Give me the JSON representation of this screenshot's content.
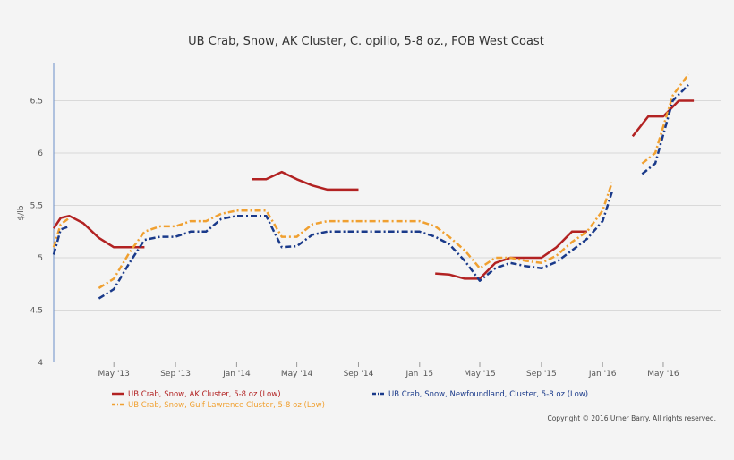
{
  "chart_data": {
    "type": "line",
    "title": "UB Crab, Snow, AK Cluster, C. opilio, 5-8 oz., FOB West Coast",
    "ylabel": "$/lb",
    "xlabel": "",
    "ylim": [
      4,
      6.75
    ],
    "y_ticks": [
      "4",
      "4.5",
      "5",
      "5.5",
      "6",
      "6.5"
    ],
    "x_ticks": [
      {
        "label": "May '13",
        "x": "2013-05"
      },
      {
        "label": "Sep '13",
        "x": "2013-09"
      },
      {
        "label": "Jan '14",
        "x": "2014-01"
      },
      {
        "label": "May '14",
        "x": "2014-05"
      },
      {
        "label": "Sep '14",
        "x": "2014-09"
      },
      {
        "label": "Jan '15",
        "x": "2015-01"
      },
      {
        "label": "May '15",
        "x": "2015-05"
      },
      {
        "label": "Sep '15",
        "x": "2015-09"
      },
      {
        "label": "Jan '16",
        "x": "2016-01"
      },
      {
        "label": "May '16",
        "x": "2016-05"
      }
    ],
    "grid": "horizontal",
    "legend_position": "bottom",
    "series": [
      {
        "name": "UB Crab, Snow, AK Cluster, 5-8 oz (Low)",
        "color": "#b22222",
        "style": "solid",
        "segments": [
          [
            [
              "2013-01-01",
              5.28
            ],
            [
              "2013-01-15",
              5.38
            ],
            [
              "2013-02-01",
              5.4
            ],
            [
              "2013-03-01",
              5.33
            ],
            [
              "2013-04-01",
              5.19
            ],
            [
              "2013-05-01",
              5.1
            ],
            [
              "2013-06-01",
              5.1
            ],
            [
              "2013-07-01",
              5.1
            ]
          ],
          [
            [
              "2014-02-01",
              5.75
            ],
            [
              "2014-03-01",
              5.75
            ],
            [
              "2014-04-01",
              5.82
            ],
            [
              "2014-05-01",
              5.75
            ],
            [
              "2014-06-01",
              5.69
            ],
            [
              "2014-07-01",
              5.65
            ],
            [
              "2014-08-01",
              5.65
            ],
            [
              "2014-09-01",
              5.65
            ]
          ],
          [
            [
              "2015-02-01",
              4.85
            ],
            [
              "2015-03-01",
              4.84
            ],
            [
              "2015-04-01",
              4.8
            ],
            [
              "2015-05-01",
              4.8
            ],
            [
              "2015-06-01",
              4.95
            ],
            [
              "2015-07-01",
              5.0
            ],
            [
              "2015-08-01",
              5.0
            ],
            [
              "2015-09-01",
              5.0
            ],
            [
              "2015-10-01",
              5.1
            ],
            [
              "2015-11-01",
              5.25
            ],
            [
              "2015-12-01",
              5.25
            ]
          ],
          [
            [
              "2016-03-01",
              6.16
            ],
            [
              "2016-04-01",
              6.35
            ],
            [
              "2016-05-01",
              6.35
            ],
            [
              "2016-06-01",
              6.5
            ],
            [
              "2016-07-01",
              6.5
            ]
          ]
        ]
      },
      {
        "name": "UB Crab, Snow, Gulf Lawrence Cluster, 5-8 oz (Low)",
        "color": "#f0a030",
        "style": "dashdot",
        "segments": [
          [
            [
              "2013-01-01",
              5.1
            ],
            [
              "2013-01-15",
              5.32
            ],
            [
              "2013-02-01",
              5.38
            ]
          ],
          [
            [
              "2013-04-01",
              4.71
            ],
            [
              "2013-05-01",
              4.8
            ],
            [
              "2013-06-01",
              5.05
            ],
            [
              "2013-07-01",
              5.25
            ],
            [
              "2013-08-01",
              5.3
            ],
            [
              "2013-09-01",
              5.3
            ],
            [
              "2013-10-01",
              5.35
            ],
            [
              "2013-11-01",
              5.35
            ],
            [
              "2013-12-01",
              5.42
            ],
            [
              "2014-01-01",
              5.45
            ],
            [
              "2014-02-01",
              5.45
            ],
            [
              "2014-03-01",
              5.45
            ],
            [
              "2014-04-01",
              5.2
            ],
            [
              "2014-05-01",
              5.2
            ],
            [
              "2014-06-01",
              5.32
            ],
            [
              "2014-07-01",
              5.35
            ],
            [
              "2014-08-01",
              5.35
            ],
            [
              "2014-09-01",
              5.35
            ],
            [
              "2014-10-01",
              5.35
            ],
            [
              "2014-11-01",
              5.35
            ],
            [
              "2014-12-01",
              5.35
            ],
            [
              "2015-01-01",
              5.35
            ],
            [
              "2015-02-01",
              5.3
            ],
            [
              "2015-03-01",
              5.2
            ],
            [
              "2015-04-01",
              5.07
            ],
            [
              "2015-05-01",
              4.9
            ],
            [
              "2015-06-01",
              5.0
            ],
            [
              "2015-07-01",
              5.0
            ],
            [
              "2015-08-01",
              4.97
            ],
            [
              "2015-09-01",
              4.95
            ],
            [
              "2015-10-01",
              5.02
            ],
            [
              "2015-11-01",
              5.15
            ],
            [
              "2015-12-01",
              5.25
            ],
            [
              "2016-01-01",
              5.45
            ],
            [
              "2016-01-20",
              5.72
            ]
          ],
          [
            [
              "2016-03-20",
              5.9
            ],
            [
              "2016-04-15",
              6.0
            ],
            [
              "2016-05-20",
              6.55
            ],
            [
              "2016-06-20",
              6.75
            ]
          ]
        ]
      },
      {
        "name": "UB Crab, Snow, Newfoundland, Cluster, 5-8 oz (Low)",
        "color": "#1a3a8a",
        "style": "dashdot",
        "segments": [
          [
            [
              "2013-01-01",
              5.03
            ],
            [
              "2013-01-15",
              5.27
            ],
            [
              "2013-02-01",
              5.3
            ]
          ],
          [
            [
              "2013-04-01",
              4.61
            ],
            [
              "2013-05-01",
              4.7
            ],
            [
              "2013-06-01",
              4.95
            ],
            [
              "2013-07-01",
              5.17
            ],
            [
              "2013-08-01",
              5.2
            ],
            [
              "2013-09-01",
              5.2
            ],
            [
              "2013-10-01",
              5.25
            ],
            [
              "2013-11-01",
              5.25
            ],
            [
              "2013-12-01",
              5.37
            ],
            [
              "2014-01-01",
              5.4
            ],
            [
              "2014-02-01",
              5.4
            ],
            [
              "2014-03-01",
              5.4
            ],
            [
              "2014-04-01",
              5.1
            ],
            [
              "2014-05-01",
              5.11
            ],
            [
              "2014-06-01",
              5.22
            ],
            [
              "2014-07-01",
              5.25
            ],
            [
              "2014-08-01",
              5.25
            ],
            [
              "2014-09-01",
              5.25
            ],
            [
              "2014-10-01",
              5.25
            ],
            [
              "2014-11-01",
              5.25
            ],
            [
              "2014-12-01",
              5.25
            ],
            [
              "2015-01-01",
              5.25
            ],
            [
              "2015-02-01",
              5.2
            ],
            [
              "2015-03-01",
              5.13
            ],
            [
              "2015-04-01",
              4.97
            ],
            [
              "2015-05-01",
              4.78
            ],
            [
              "2015-06-01",
              4.9
            ],
            [
              "2015-07-01",
              4.95
            ],
            [
              "2015-08-01",
              4.92
            ],
            [
              "2015-09-01",
              4.9
            ],
            [
              "2015-10-01",
              4.96
            ],
            [
              "2015-11-01",
              5.07
            ],
            [
              "2015-12-01",
              5.18
            ],
            [
              "2016-01-01",
              5.35
            ],
            [
              "2016-01-20",
              5.63
            ]
          ],
          [
            [
              "2016-03-20",
              5.8
            ],
            [
              "2016-04-15",
              5.9
            ],
            [
              "2016-05-20",
              6.5
            ],
            [
              "2016-06-20",
              6.65
            ]
          ]
        ]
      }
    ],
    "copyright": "Copyright © 2016 Urner Barry. All rights reserved."
  }
}
